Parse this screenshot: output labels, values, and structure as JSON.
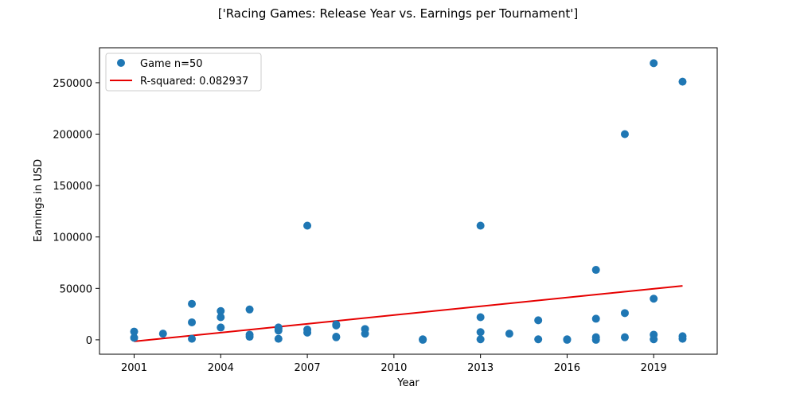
{
  "chart_data": {
    "type": "scatter",
    "title": "['Racing Games: Release Year vs. Earnings per Tournament']",
    "xlabel": "Year",
    "ylabel": "Earnings in USD",
    "xlim": [
      1999.8,
      2021.2
    ],
    "ylim": [
      -14000,
      284000
    ],
    "x_ticks": [
      2001,
      2004,
      2007,
      2010,
      2013,
      2016,
      2019
    ],
    "y_ticks": [
      0,
      50000,
      100000,
      150000,
      200000,
      250000
    ],
    "grid": false,
    "legend_position": "top-left",
    "series": [
      {
        "name": "Game n=50",
        "kind": "scatter",
        "color": "#1f77b4",
        "points": [
          [
            2001,
            8000
          ],
          [
            2001,
            2000
          ],
          [
            2002,
            6000
          ],
          [
            2003,
            35000
          ],
          [
            2003,
            17000
          ],
          [
            2003,
            1000
          ],
          [
            2004,
            28000
          ],
          [
            2004,
            22000
          ],
          [
            2004,
            12000
          ],
          [
            2005,
            29500
          ],
          [
            2005,
            5000
          ],
          [
            2005,
            3000
          ],
          [
            2006,
            11000
          ],
          [
            2006,
            9000
          ],
          [
            2006,
            1000
          ],
          [
            2007,
            111000
          ],
          [
            2007,
            10000
          ],
          [
            2007,
            7000
          ],
          [
            2008,
            15000
          ],
          [
            2008,
            14000
          ],
          [
            2008,
            3000
          ],
          [
            2009,
            10500
          ],
          [
            2009,
            6000
          ],
          [
            2011,
            500
          ],
          [
            2011,
            0
          ],
          [
            2013,
            111000
          ],
          [
            2013,
            22000
          ],
          [
            2013,
            7500
          ],
          [
            2013,
            500
          ],
          [
            2014,
            6000
          ],
          [
            2015,
            19000
          ],
          [
            2015,
            500
          ],
          [
            2016,
            500
          ],
          [
            2016,
            0
          ],
          [
            2017,
            68000
          ],
          [
            2017,
            20500
          ],
          [
            2017,
            2500
          ],
          [
            2017,
            0
          ],
          [
            2018,
            200000
          ],
          [
            2018,
            26000
          ],
          [
            2018,
            2500
          ],
          [
            2019,
            269000
          ],
          [
            2019,
            40000
          ],
          [
            2019,
            5000
          ],
          [
            2019,
            500
          ],
          [
            2020,
            251000
          ],
          [
            2020,
            3500
          ],
          [
            2020,
            1000
          ],
          [
            2006,
            12000
          ],
          [
            2008,
            2500
          ]
        ]
      },
      {
        "name": "R-squared: 0.082937",
        "kind": "line",
        "color": "#e60000",
        "points": [
          [
            2001,
            -1500
          ],
          [
            2020,
            52500
          ]
        ]
      }
    ]
  }
}
